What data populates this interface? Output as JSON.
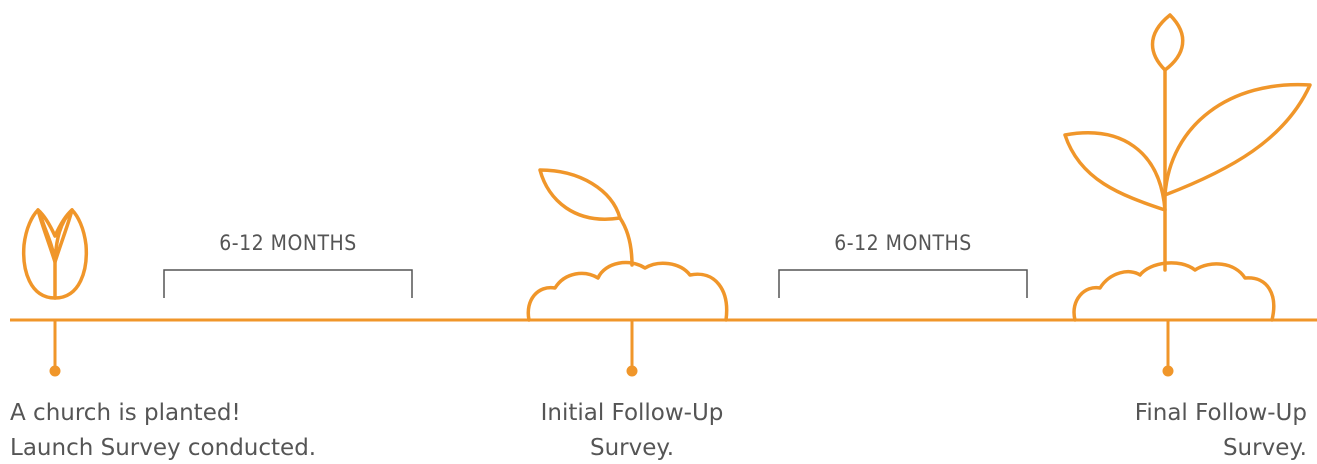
{
  "intervals": [
    "6-12 MONTHS",
    "6-12 MONTHS"
  ],
  "milestones": [
    {
      "lines": [
        "A church is planted!",
        "Launch Survey conducted."
      ]
    },
    {
      "lines": [
        "Initial Follow-Up",
        "Survey."
      ]
    },
    {
      "lines": [
        "Final Follow-Up",
        "Survey."
      ]
    }
  ]
}
